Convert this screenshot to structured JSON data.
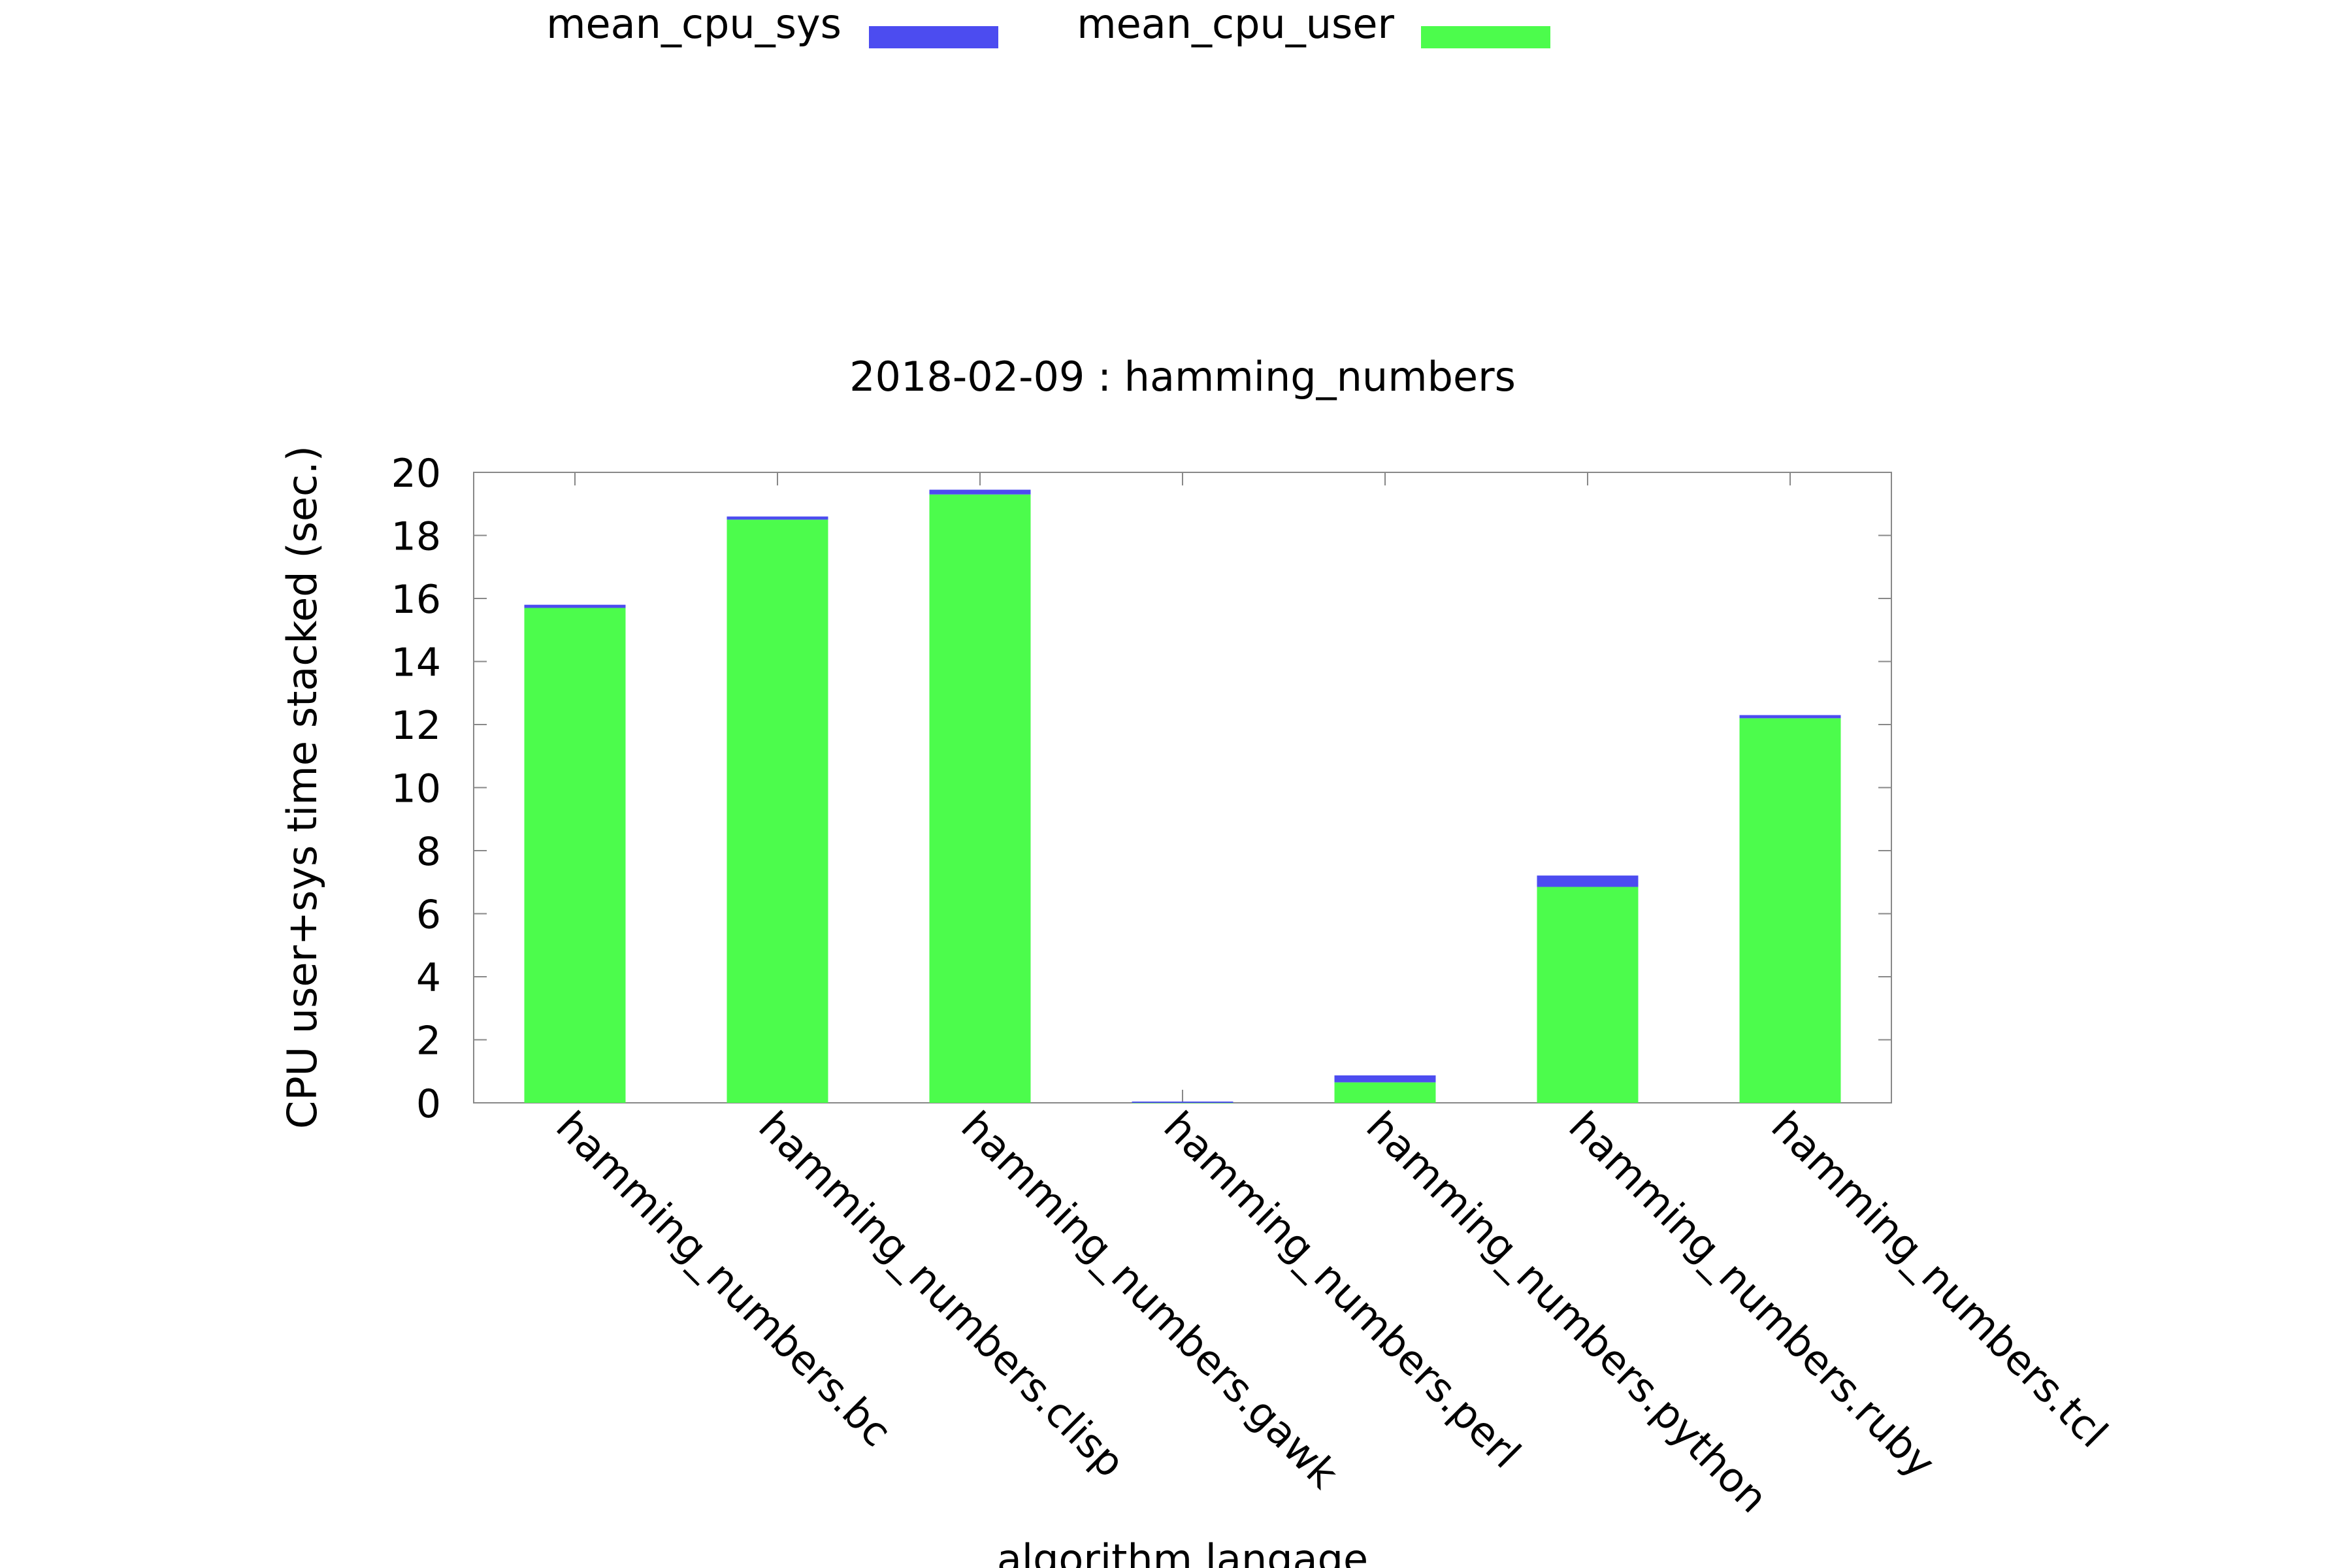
{
  "chart_data": {
    "type": "bar",
    "stacked": true,
    "title": "2018-02-09 : hamming_numbers",
    "xlabel": "algorithm langage",
    "ylabel": "CPU user+sys time stacked (sec.)",
    "ylim": [
      0,
      20
    ],
    "yticks": [
      0,
      2,
      4,
      6,
      8,
      10,
      12,
      14,
      16,
      18,
      20
    ],
    "grid": false,
    "legend_position": "top",
    "categories": [
      "hamming_numbers.bc",
      "hamming_numbers.clisp",
      "hamming_numbers.gawk",
      "hamming_numbers.perl",
      "hamming_numbers.python",
      "hamming_numbers.ruby",
      "hamming_numbers.tcl"
    ],
    "series": [
      {
        "name": "mean_cpu_user",
        "color": "#4cfc4c",
        "values": [
          15.7,
          18.5,
          19.3,
          0.0,
          0.65,
          6.85,
          12.2
        ]
      },
      {
        "name": "mean_cpu_sys",
        "color": "#4c4cf0",
        "values": [
          0.1,
          0.1,
          0.15,
          0.04,
          0.22,
          0.36,
          0.1
        ]
      }
    ],
    "legend": [
      {
        "name": "mean_cpu_sys",
        "color": "#4c4cf0"
      },
      {
        "name": "mean_cpu_user",
        "color": "#4cfc4c"
      }
    ]
  }
}
